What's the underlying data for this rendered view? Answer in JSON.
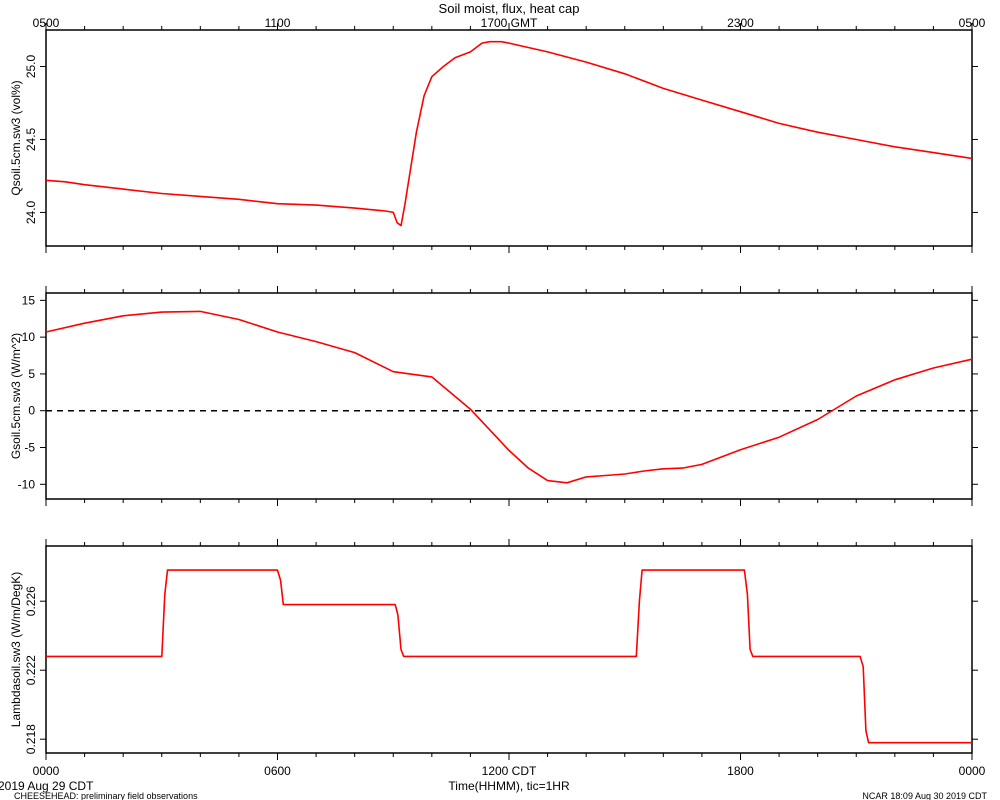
{
  "chart_data": {
    "type": "line",
    "title": "Soil moist, flux, heat cap",
    "top_axis": {
      "tick_labels": [
        "0500",
        "1100",
        "1700 GMT",
        "2300",
        "0500"
      ]
    },
    "bottom_axis": {
      "tick_labels": [
        "0000",
        "0600",
        "1200 CDT",
        "1800",
        "0000"
      ],
      "xlabel": "Time(HHMM), tic=1HR",
      "xlim": [
        0,
        24
      ],
      "start_date": "2019 Aug 29 CDT"
    },
    "footer": {
      "left": "CHEESEHEAD: preliminary field observations",
      "right": "NCAR 18:09 Aug 30 2019 CDT"
    },
    "line_color": "#ff0000",
    "panels": [
      {
        "ylabel": "Qsoil.5cm.sw3 (vol%)",
        "ylim": [
          23.77,
          25.25
        ],
        "yticks": [
          24.0,
          24.5,
          25.0
        ],
        "ytick_labels": [
          "24.0",
          "24.5",
          "25.0"
        ],
        "series": [
          {
            "x": [
              0,
              0.5,
              1,
              2,
              3,
              4,
              5,
              6,
              7,
              8,
              8.8,
              9.0,
              9.1,
              9.2,
              9.3,
              9.45,
              9.6,
              9.8,
              10.0,
              10.3,
              10.6,
              11.0,
              11.3,
              11.5,
              11.8,
              12.0,
              12.5,
              13,
              14,
              15,
              16,
              17,
              18,
              19,
              20,
              21,
              22,
              23,
              24
            ],
            "y": [
              24.22,
              24.21,
              24.19,
              24.16,
              24.13,
              24.11,
              24.09,
              24.06,
              24.05,
              24.03,
              24.01,
              24.0,
              23.93,
              23.91,
              24.05,
              24.3,
              24.55,
              24.8,
              24.93,
              25.0,
              25.06,
              25.1,
              25.16,
              25.17,
              25.17,
              25.16,
              25.13,
              25.1,
              25.03,
              24.95,
              24.85,
              24.77,
              24.69,
              24.61,
              24.55,
              24.5,
              24.45,
              24.41,
              24.37
            ]
          }
        ]
      },
      {
        "ylabel": "Gsoil.5cm.sw3 (W/m^2)",
        "ylim": [
          -12,
          16
        ],
        "yticks": [
          -10,
          -5,
          0,
          5,
          10,
          15
        ],
        "ytick_labels": [
          "-10",
          "-5",
          "0",
          "5",
          "10",
          "15"
        ],
        "zero_line": true,
        "series": [
          {
            "x": [
              0,
              1,
              2,
              3,
              4,
              5,
              6,
              7,
              8,
              9,
              10,
              11,
              12,
              12.5,
              13,
              13.5,
              14,
              14.5,
              15,
              15.5,
              16,
              16.5,
              17,
              18,
              19,
              20,
              21,
              22,
              23,
              24
            ],
            "y": [
              10.7,
              11.9,
              12.9,
              13.4,
              13.5,
              12.4,
              10.7,
              9.4,
              7.9,
              5.3,
              4.6,
              0.2,
              -5.4,
              -7.8,
              -9.5,
              -9.8,
              -9.0,
              -8.8,
              -8.6,
              -8.2,
              -7.9,
              -7.8,
              -7.3,
              -5.3,
              -3.6,
              -1.2,
              2.0,
              4.2,
              5.8,
              7.0
            ]
          }
        ]
      },
      {
        "ylabel": "Lambdasoil.sw3 (W/m/DegK)",
        "ylim": [
          0.2172,
          0.2292
        ],
        "yticks": [
          0.218,
          0.222,
          0.226
        ],
        "ytick_labels": [
          "0.218",
          "0.222",
          "0.226"
        ],
        "series": [
          {
            "x": [
              0,
              3.0,
              3.08,
              3.15,
              3.22,
              6.0,
              6.08,
              6.15,
              6.22,
              9.05,
              9.12,
              9.2,
              9.27,
              15.3,
              15.38,
              15.45,
              15.52,
              18.1,
              18.18,
              18.25,
              18.32,
              21.1,
              21.18,
              21.25,
              21.32,
              24
            ],
            "y": [
              0.2228,
              0.2228,
              0.2264,
              0.2278,
              0.2278,
              0.2278,
              0.2272,
              0.2258,
              0.2258,
              0.2258,
              0.2252,
              0.2232,
              0.2228,
              0.2228,
              0.226,
              0.2278,
              0.2278,
              0.2278,
              0.2264,
              0.2232,
              0.2228,
              0.2228,
              0.2222,
              0.2185,
              0.2178,
              0.2178
            ]
          }
        ]
      }
    ]
  }
}
